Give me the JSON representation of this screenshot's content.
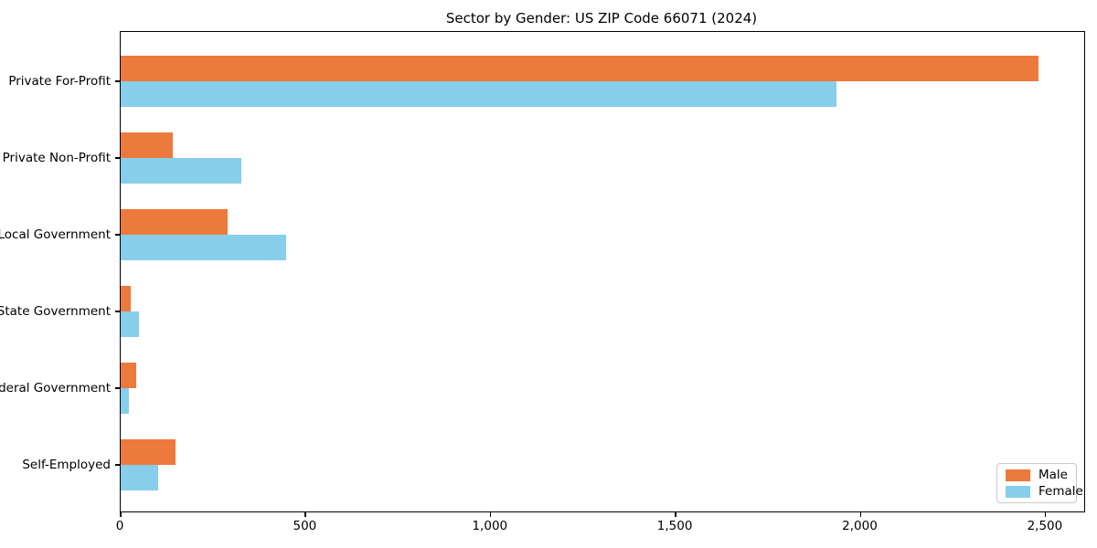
{
  "title": "Sector by Gender: US ZIP Code 66071 (2024)",
  "colors": {
    "male": "#EC7A3D",
    "female": "#87CEEB",
    "axis": "#000000",
    "text": "#000000",
    "legend_border": "#C8C8C8",
    "background": "#FFFFFF"
  },
  "chart_data": {
    "type": "bar",
    "orientation": "horizontal",
    "title": "Sector by Gender: US ZIP Code 66071 (2024)",
    "categories": [
      "Private For-Profit",
      "Private Non-Profit",
      "Local Government",
      "State Government",
      "Federal Government",
      "Self-Employed"
    ],
    "series": [
      {
        "name": "Male",
        "color": "#EC7A3D",
        "values": [
          2480,
          141,
          289,
          26,
          41,
          148
        ]
      },
      {
        "name": "Female",
        "color": "#87CEEB",
        "values": [
          1934,
          326,
          447,
          49,
          22,
          100
        ]
      }
    ],
    "xlabel": "",
    "ylabel": "",
    "xlim": [
      0,
      2604
    ],
    "xticks": [
      0,
      500,
      1000,
      1500,
      2000,
      2500
    ],
    "xtick_labels": [
      "0",
      "500",
      "1,000",
      "1,500",
      "2,000",
      "2,500"
    ],
    "grid": false,
    "legend_position": "lower-right"
  }
}
